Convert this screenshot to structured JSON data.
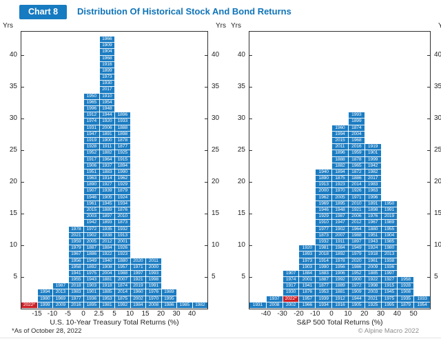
{
  "header": {
    "chart_label": "Chart 8",
    "title": "Distribution Of Historical Stock And Bond Returns"
  },
  "axes": {
    "yrs_label": "Yrs"
  },
  "footnote": "*As of October 28, 2022",
  "attribution": "© Alpine Macro 2022",
  "colors": {
    "bar_blue": "#1b7cc2",
    "highlight_red": "#cb2027",
    "title_blue": "#0f74b8",
    "border": "#2e2e2e"
  },
  "chart_data": [
    {
      "type": "bar",
      "subtype": "stacked-year-histogram",
      "xlabel": "U.S. 10-Year Treasury Total Returns (%)",
      "ylabel": "Yrs",
      "ylim": [
        0,
        44
      ],
      "y_ticks": [
        5,
        10,
        15,
        20,
        25,
        30,
        35,
        40
      ],
      "bin_edge_labels": [
        "-15",
        "-10",
        "-5",
        "0",
        "2.5",
        "5",
        "10",
        "15",
        "20",
        "30",
        "40"
      ],
      "highlight_years": [
        "2022*"
      ],
      "columns": [
        [
          "2022*"
        ],
        [
          "1994",
          "1980",
          "1999"
        ],
        [
          "1987",
          "2013",
          "1969",
          "2009"
        ],
        [
          "1978",
          "2021",
          "1959",
          "1979",
          "1967",
          "1956",
          "1958",
          "1941",
          "1955",
          "2018",
          "1983",
          "1977",
          "2016"
        ],
        [
          "1950",
          "1965",
          "1996",
          "1912",
          "1974",
          "1931",
          "1947",
          "1919",
          "1928",
          "1952",
          "1917",
          "1906",
          "1951",
          "1963",
          "1890",
          "1907",
          "1946",
          "1961",
          "2015",
          "2003",
          "1942",
          "1972",
          "1902",
          "2005",
          "1887",
          "1886",
          "1949",
          "1892",
          "1975",
          "1943",
          "1903",
          "1901",
          "1936",
          "1895"
        ],
        [
          "1966",
          "1909",
          "1904",
          "1968",
          "1916",
          "1899",
          "1973",
          "1930",
          "2017",
          "1910",
          "1954",
          "1948",
          "1944",
          "1920",
          "2006",
          "1891",
          "1900",
          "1911",
          "1882",
          "1964",
          "1937",
          "1883",
          "1914",
          "1927",
          "1939",
          "1905",
          "1945",
          "1889",
          "1897",
          "1893",
          "1935",
          "1938",
          "2012",
          "1884",
          "1922",
          "1940",
          "1908",
          "2004",
          "1881",
          "1918",
          "1885",
          "1953",
          "1981"
        ],
        [
          "1896",
          "1933",
          "1888",
          "1898",
          "1878",
          "1877",
          "1925",
          "1915",
          "1894",
          "1990",
          "1962",
          "1929",
          "1879",
          "1924",
          "1934",
          "1876",
          "2010",
          "1873",
          "1932",
          "1913",
          "2001",
          "1926",
          "1923",
          "1880",
          "1957",
          "1988",
          "2007",
          "1874",
          "2014",
          "1875",
          "1992"
        ],
        [
          "2020",
          "1971",
          "1997",
          "1921",
          "2019",
          "1960",
          "2002",
          "1984"
        ],
        [
          "2011",
          "2000",
          "1993",
          "1998",
          "1991",
          "1976",
          "1970",
          "2008"
        ],
        [
          "1989",
          "1995",
          "1986"
        ],
        [
          "1985"
        ],
        [
          "1982"
        ]
      ]
    },
    {
      "type": "bar",
      "subtype": "stacked-year-histogram",
      "xlabel": "S&P 500 Total Returns (%)",
      "ylabel": "Yrs",
      "ylim": [
        0,
        44
      ],
      "y_ticks": [
        5,
        10,
        15,
        20,
        25,
        30,
        35,
        40
      ],
      "bin_edge_labels": [
        "-40",
        "-30",
        "-20",
        "-10",
        "0",
        "10",
        "20",
        "30",
        "40",
        "50"
      ],
      "highlight_years": [
        "2022*"
      ],
      "columns": [
        [
          "1931"
        ],
        [
          "1937",
          "2008"
        ],
        [
          "1907",
          "1974",
          "1917",
          "1930",
          "2022*",
          "2002"
        ],
        [
          "1920",
          "1893",
          "1973",
          "1903",
          "1884",
          "2001",
          "1941",
          "1876",
          "1957",
          "1966"
        ],
        [
          "1940",
          "1890",
          "1913",
          "2000",
          "1962",
          "1969",
          "1946",
          "1929",
          "1910",
          "1977",
          "1873",
          "1932",
          "1981",
          "2018",
          "1914",
          "1990",
          "1883",
          "1887",
          "1877",
          "1953",
          "1939",
          "1934"
        ],
        [
          "1960",
          "1994",
          "2015",
          "2011",
          "1896",
          "1888",
          "1882",
          "1894",
          "1875",
          "1923",
          "1970",
          "2005",
          "1895",
          "1948",
          "1987",
          "1947",
          "1902",
          "2007",
          "1911",
          "1984",
          "1892",
          "1978",
          "1956",
          "1906",
          "1992",
          "1889",
          "1881",
          "1912",
          "1916"
        ],
        [
          "1993",
          "1899",
          "1874",
          "2004",
          "1968",
          "2016",
          "1959",
          "1878",
          "1965",
          "1872",
          "1886",
          "2014",
          "1926",
          "1971",
          "2010",
          "1921",
          "2006",
          "2012",
          "1964",
          "1988",
          "1897",
          "1949",
          "1979",
          "2020",
          "1986",
          "1952",
          "1900",
          "1972",
          "1909",
          "1944",
          "1905"
        ],
        [
          "1919",
          "1901",
          "1999",
          "1942",
          "1982",
          "2017",
          "1983",
          "1963",
          "1996",
          "1891",
          "1898",
          "1976",
          "1967",
          "1880",
          "1951",
          "1943",
          "1924",
          "1918",
          "1961",
          "2009",
          "1885",
          "1922",
          "1998",
          "2003",
          "2021",
          "1925"
        ],
        [
          "1950",
          "1991",
          "2019",
          "1989",
          "1955",
          "1904",
          "1985",
          "1980",
          "2013",
          "1938",
          "1936",
          "1997",
          "1927",
          "1915",
          "1945",
          "1975",
          "1995"
        ],
        [
          "1958",
          "1928",
          "1908",
          "1935",
          "1879"
        ],
        [
          "1933",
          "1954"
        ]
      ]
    }
  ]
}
